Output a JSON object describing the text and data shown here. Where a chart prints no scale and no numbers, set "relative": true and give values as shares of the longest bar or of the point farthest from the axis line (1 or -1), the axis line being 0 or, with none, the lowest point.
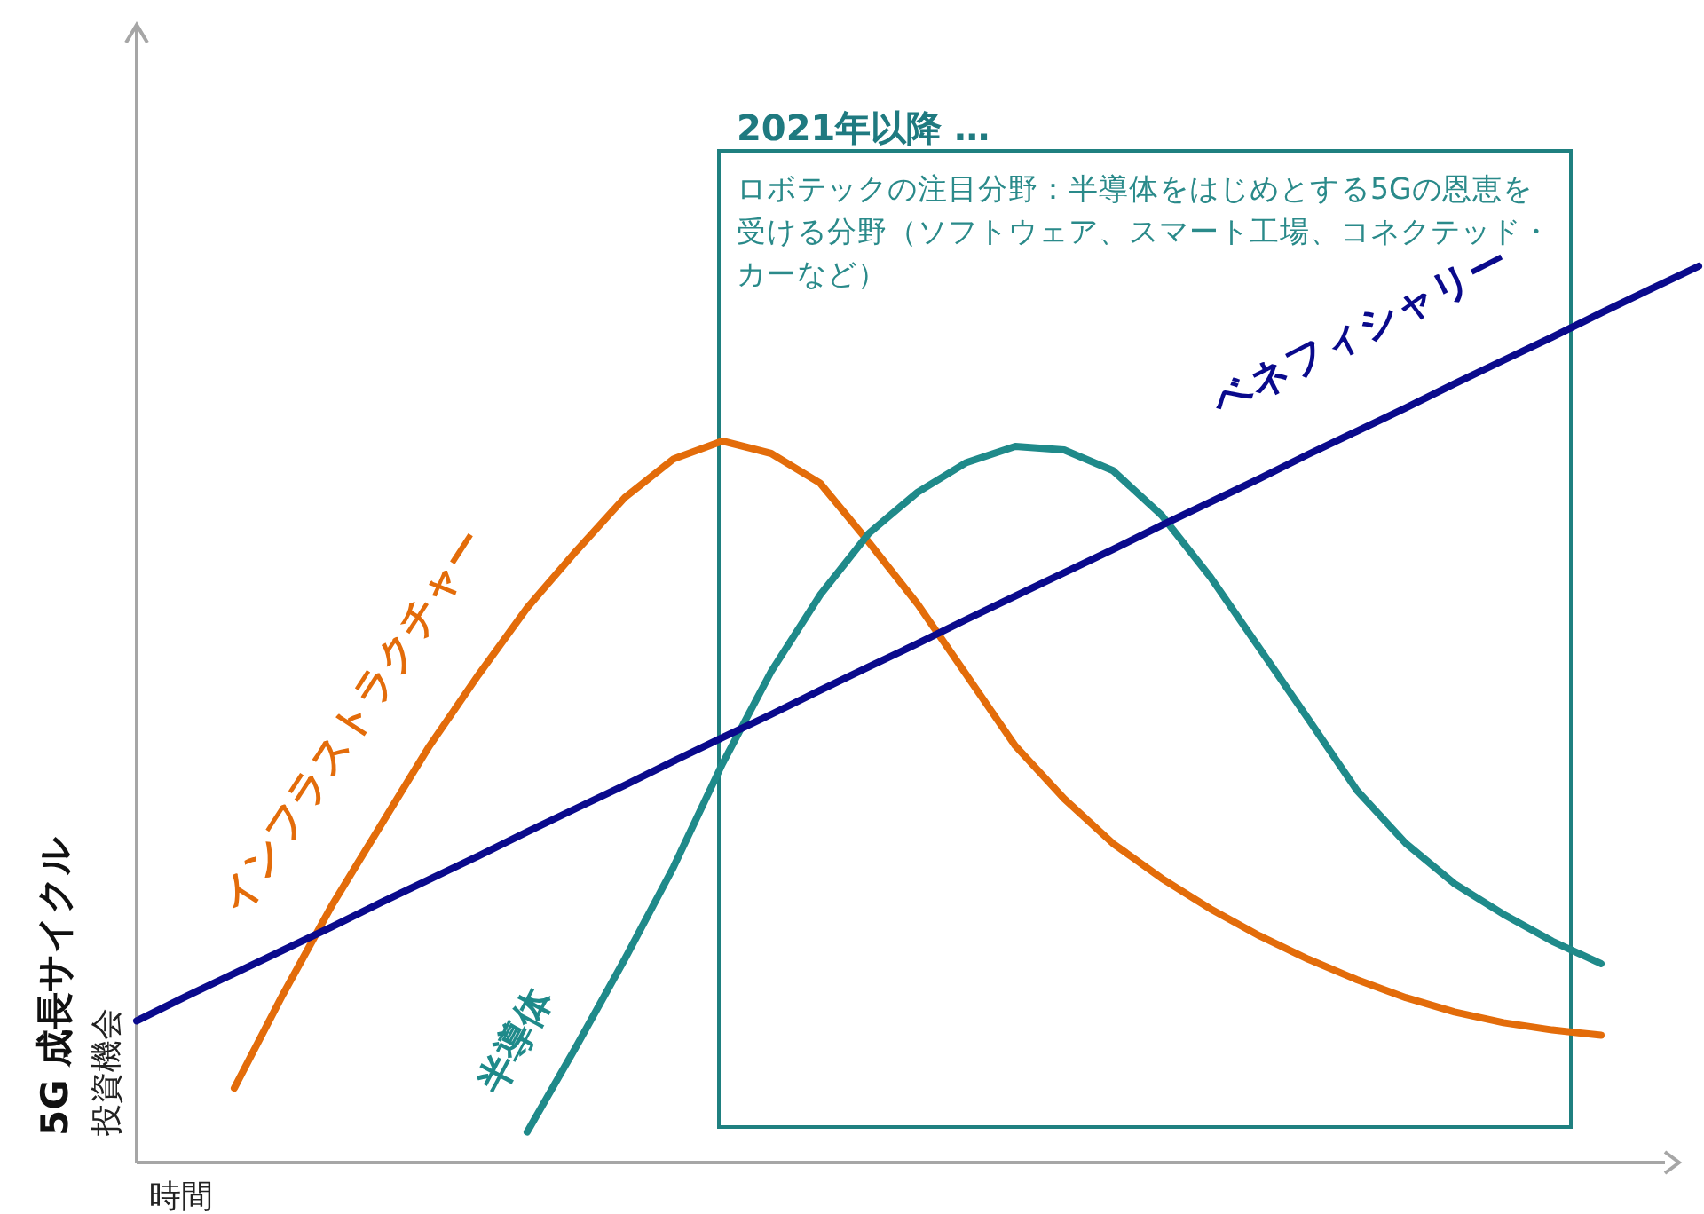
{
  "chart_data": {
    "type": "line",
    "relative": true,
    "grid": false,
    "legend": false,
    "xlabel": "時間",
    "ylabel": "5G 成長サイクル",
    "annotations": [
      "投資機会",
      "2021年以降 …",
      "ロボテックの注目分野：半導体をはじめとする5Gの恩恵を受ける分野（ソフトウェア、スマート工場、コネクテッド・カーなど）"
    ],
    "categories": [
      null,
      null,
      null,
      null,
      null,
      null,
      null,
      null,
      null,
      null,
      null,
      null,
      null,
      null,
      null,
      null,
      null,
      null,
      null,
      null,
      null,
      null,
      null,
      null,
      null,
      null,
      null,
      null,
      null,
      null,
      null,
      null,
      null
    ],
    "series": [
      {
        "name": "インフラストラクチャー",
        "color": "#e36c0a",
        "values": [
          null,
          null,
          0.083,
          0.188,
          0.287,
          0.376,
          0.465,
          0.544,
          0.619,
          0.682,
          0.742,
          0.785,
          0.805,
          0.791,
          0.758,
          0.692,
          0.623,
          0.544,
          0.465,
          0.406,
          0.356,
          0.317,
          0.283,
          0.253,
          0.227,
          0.204,
          0.184,
          0.168,
          0.156,
          0.148,
          0.142,
          null,
          null
        ]
      },
      {
        "name": "半導体",
        "color": "#1f8a8a",
        "values": [
          null,
          null,
          null,
          null,
          null,
          null,
          null,
          null,
          0.034,
          0.129,
          0.227,
          0.33,
          0.445,
          0.548,
          0.633,
          0.702,
          0.748,
          0.781,
          0.799,
          0.795,
          0.772,
          0.722,
          0.653,
          0.574,
          0.495,
          0.415,
          0.356,
          0.311,
          0.277,
          0.247,
          0.222,
          null,
          null
        ]
      },
      {
        "name": "ベネフィシャリー",
        "color": "#0a0a8c",
        "values": [
          0.158,
          0.185,
          0.211,
          0.237,
          0.263,
          0.29,
          0.316,
          0.342,
          0.369,
          0.395,
          0.421,
          0.448,
          0.474,
          0.5,
          0.527,
          0.553,
          0.579,
          0.606,
          0.632,
          0.658,
          0.684,
          0.711,
          0.737,
          0.763,
          0.79,
          0.816,
          0.842,
          0.869,
          0.895,
          0.921,
          0.948,
          0.974,
          1.0
        ]
      }
    ]
  }
}
